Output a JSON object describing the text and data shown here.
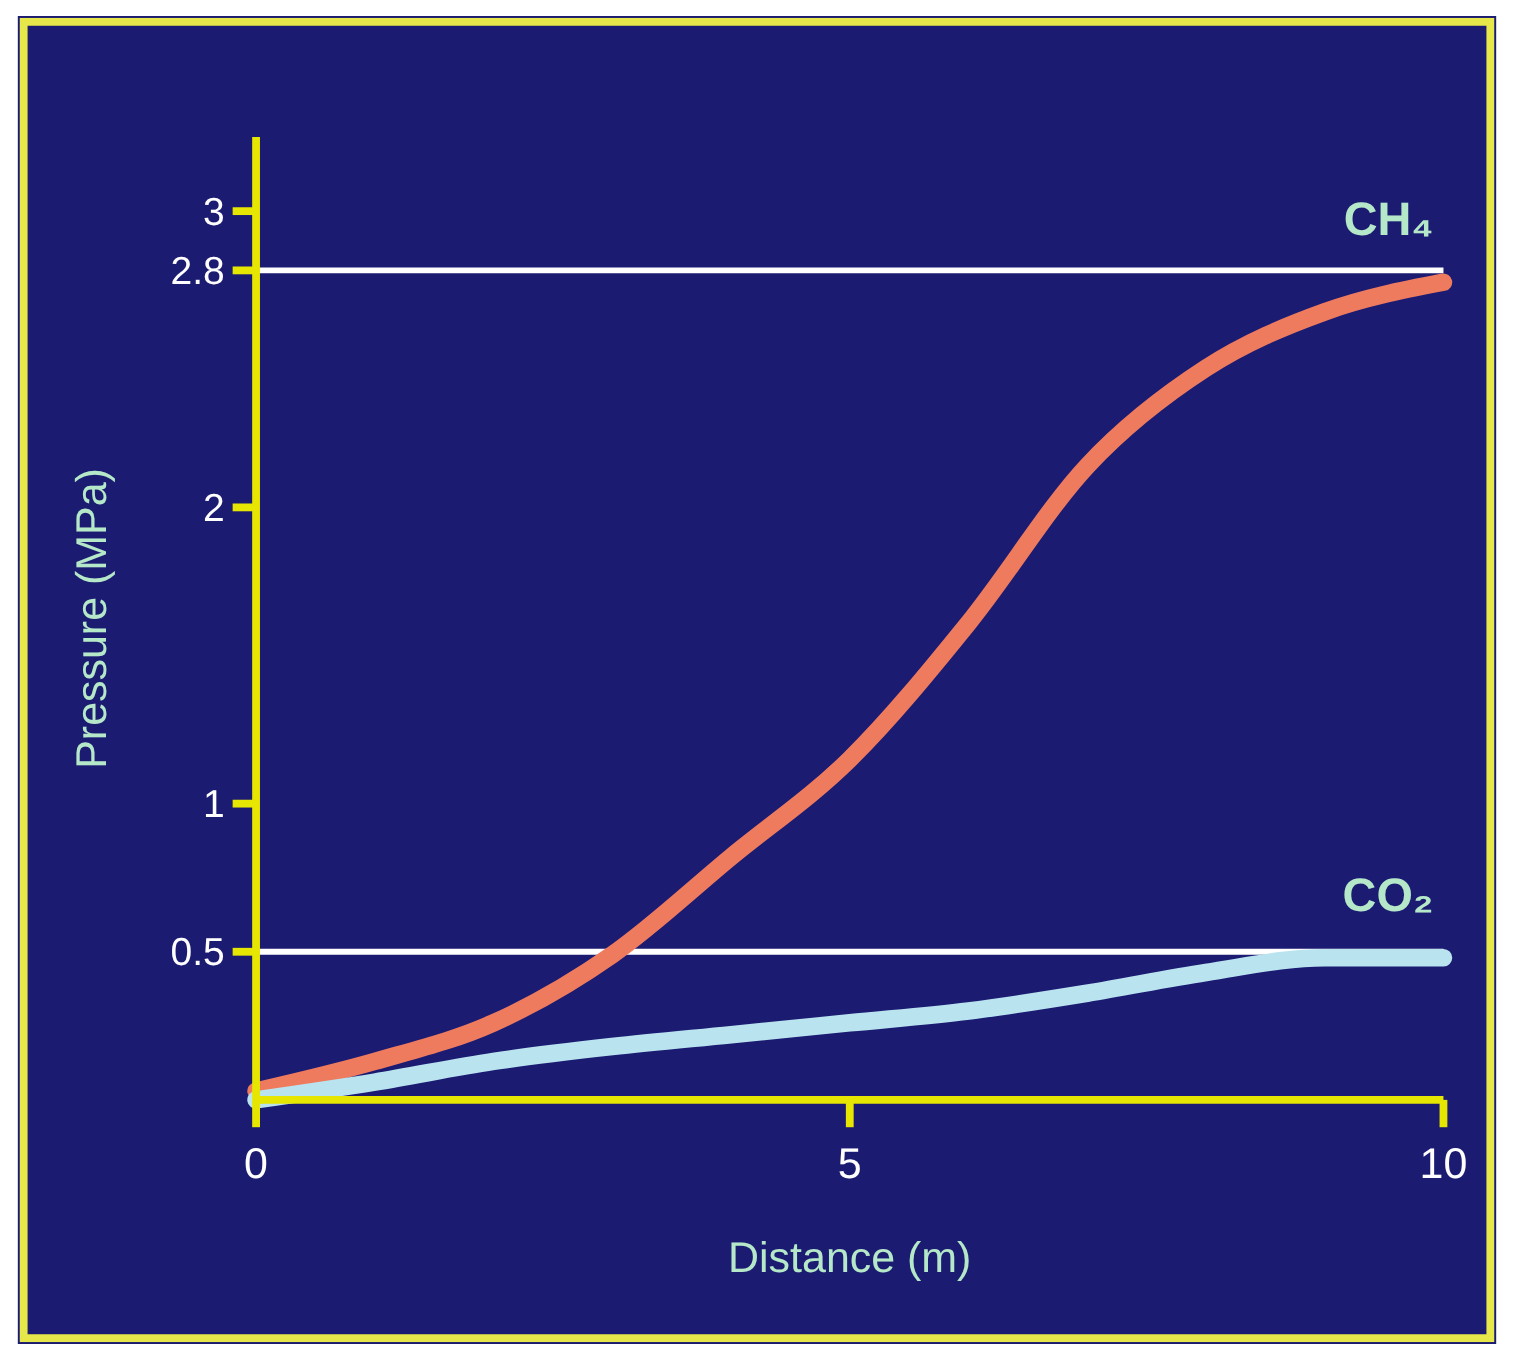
{
  "chart_data": {
    "type": "line",
    "xlabel": "Distance (m)",
    "ylabel": "Pressure (MPa)",
    "x": [
      0,
      1,
      2,
      3,
      4,
      5,
      6,
      7,
      8,
      9,
      10
    ],
    "xlim": [
      0,
      10
    ],
    "xticks": [
      0,
      5,
      10
    ],
    "ylim": [
      0,
      3.25
    ],
    "yticks": [
      0.5,
      1,
      2,
      2.8,
      3
    ],
    "series": [
      {
        "name": "CH₄",
        "color": "#ef7b5e",
        "values": [
          0.03,
          0.13,
          0.26,
          0.49,
          0.82,
          1.15,
          1.61,
          2.14,
          2.47,
          2.66,
          2.76
        ]
      },
      {
        "name": "CO₂",
        "color": "#b9e3ef",
        "values": [
          0,
          0.06,
          0.13,
          0.18,
          0.22,
          0.26,
          0.3,
          0.36,
          0.43,
          0.48,
          0.48
        ]
      }
    ],
    "ref_lines": [
      {
        "axis": "y",
        "value": 2.8,
        "color": "#ffffff"
      },
      {
        "axis": "y",
        "value": 0.5,
        "color": "#ffffff"
      }
    ],
    "grid": false,
    "marker": "none",
    "line_style": "solid"
  }
}
